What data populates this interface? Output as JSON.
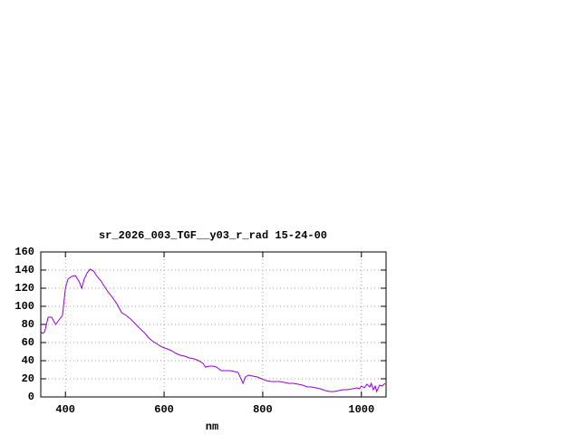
{
  "chart_data": {
    "type": "line",
    "title": "sr_2026_003_TGF__y03_r_rad 15-24-00",
    "x_label": "nm",
    "xlim": [
      350,
      1050
    ],
    "ylim": [
      0,
      160
    ],
    "xticks": [
      400,
      600,
      800,
      1000
    ],
    "yticks": [
      0,
      20,
      40,
      60,
      80,
      100,
      120,
      140,
      160
    ],
    "grid": true,
    "series": [
      {
        "color": "#9400d3",
        "x": [
          350,
          354,
          358,
          365,
          372,
          380,
          387,
          394,
          400,
          405,
          413,
          420,
          428,
          433,
          438,
          444,
          450,
          457,
          464,
          472,
          479,
          486,
          495,
          505,
          514,
          523,
          532,
          541,
          550,
          560,
          569,
          578,
          587,
          596,
          606,
          615,
          624,
          633,
          642,
          651,
          661,
          670,
          679,
          684,
          692,
          699,
          706,
          716,
          725,
          734,
          743,
          750,
          756,
          760,
          765,
          771,
          780,
          789,
          798,
          807,
          817,
          826,
          835,
          844,
          853,
          862,
          872,
          881,
          890,
          899,
          908,
          917,
          927,
          936,
          945,
          954,
          963,
          972,
          982,
          991,
          996,
          1000,
          1006,
          1011,
          1017,
          1020,
          1024,
          1028,
          1031,
          1037,
          1042,
          1048
        ],
        "values": [
          72,
          70,
          72,
          88,
          88,
          80,
          85,
          90,
          120,
          130,
          133,
          134,
          127,
          120,
          130,
          137,
          141,
          139,
          133,
          128,
          122,
          116,
          110,
          102,
          93,
          90,
          86,
          81,
          76,
          71,
          65,
          61,
          58,
          55,
          53,
          51,
          48,
          46,
          45,
          43,
          42,
          40,
          37,
          33,
          34,
          34,
          33,
          29,
          29,
          29,
          28,
          27,
          20,
          15,
          22,
          24,
          23,
          22,
          20,
          18,
          17,
          17,
          17,
          16,
          15,
          15,
          14,
          13,
          11,
          11,
          10,
          9,
          7,
          6,
          6,
          7,
          8,
          8,
          9,
          10,
          9,
          12,
          10,
          14,
          11,
          15,
          8,
          12,
          6,
          13,
          12,
          15
        ]
      }
    ]
  }
}
